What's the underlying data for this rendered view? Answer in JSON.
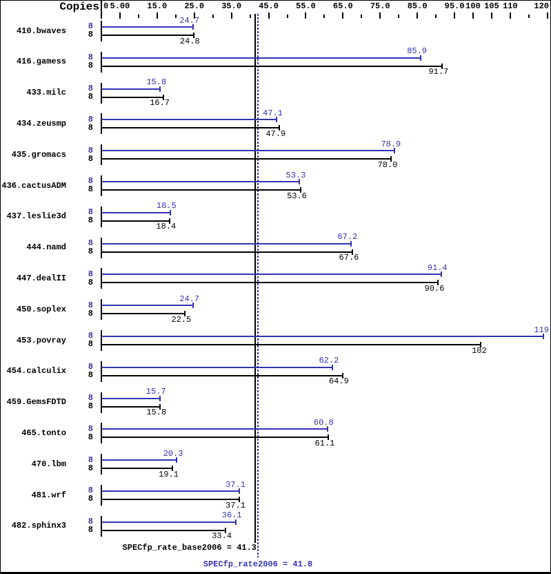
{
  "header": {
    "copies_label": "Copies"
  },
  "summary": {
    "base_text": "SPECfp_rate_base2006 = 41.3",
    "peak_text": "SPECfp_rate2006 = 41.8"
  },
  "colors": {
    "peak_blue": "#3333b3",
    "base_black": "#000000",
    "background": "#ffffff"
  },
  "chart_data": {
    "type": "bar",
    "orientation": "horizontal",
    "x_axis": {
      "min": 0,
      "max": 121.5,
      "origin_label": "0",
      "labeled_ticks": [
        {
          "value": 5,
          "label": "5.00"
        },
        {
          "value": 15,
          "label": "15.0"
        },
        {
          "value": 25,
          "label": "25.0"
        },
        {
          "value": 35,
          "label": "35.0"
        },
        {
          "value": 45,
          "label": "45.0"
        },
        {
          "value": 55,
          "label": "55.0"
        },
        {
          "value": 65,
          "label": "65.0"
        },
        {
          "value": 75,
          "label": "75.0"
        },
        {
          "value": 85,
          "label": "85.0"
        },
        {
          "value": 95,
          "label": "95.0"
        },
        {
          "value": 100,
          "label": "100"
        },
        {
          "value": 105,
          "label": "105"
        },
        {
          "value": 110,
          "label": "110"
        },
        {
          "value": 120,
          "label": "120"
        }
      ],
      "unlabeled_ticks": [
        10,
        20,
        30,
        40,
        50,
        60,
        70,
        80,
        90,
        115
      ]
    },
    "categories": [
      "410.bwaves",
      "416.gamess",
      "433.milc",
      "434.zeusmp",
      "435.gromacs",
      "436.cactusADM",
      "437.leslie3d",
      "444.namd",
      "447.dealII",
      "450.soplex",
      "453.povray",
      "454.calculix",
      "459.GemsFDTD",
      "465.tonto",
      "470.lbm",
      "481.wrf",
      "482.sphinx3"
    ],
    "series": [
      {
        "name": "peak",
        "color": "#3333b3",
        "copies": [
          8,
          8,
          8,
          8,
          8,
          8,
          8,
          8,
          8,
          8,
          8,
          8,
          8,
          8,
          8,
          8,
          8
        ],
        "values": [
          24.7,
          85.9,
          15.8,
          47.1,
          78.9,
          53.3,
          18.5,
          67.2,
          91.4,
          24.7,
          119,
          62.2,
          15.7,
          60.8,
          20.3,
          37.1,
          36.1
        ],
        "labels": [
          "24.7",
          "85.9",
          "15.8",
          "47.1",
          "78.9",
          "53.3",
          "18.5",
          "67.2",
          "91.4",
          "24.7",
          "119",
          "62.2",
          "15.7",
          "60.8",
          "20.3",
          "37.1",
          "36.1"
        ]
      },
      {
        "name": "base",
        "color": "#000000",
        "copies": [
          8,
          8,
          8,
          8,
          8,
          8,
          8,
          8,
          8,
          8,
          8,
          8,
          8,
          8,
          8,
          8,
          8
        ],
        "values": [
          24.8,
          91.7,
          16.7,
          47.9,
          78.0,
          53.6,
          18.4,
          67.6,
          90.6,
          22.5,
          102,
          64.9,
          15.8,
          61.1,
          19.1,
          37.1,
          33.4
        ],
        "labels": [
          "24.8",
          "91.7",
          "16.7",
          "47.9",
          "78.0",
          "53.6",
          "18.4",
          "67.6",
          "90.6",
          "22.5",
          "102",
          "64.9",
          "15.8",
          "61.1",
          "19.1",
          "37.1",
          "33.4"
        ]
      }
    ],
    "reference_lines": [
      {
        "series": "base",
        "value": 41.3,
        "style": "solid",
        "color": "#000000",
        "label": "SPECfp_rate_base2006 = 41.3"
      },
      {
        "series": "peak",
        "value": 41.8,
        "style": "dotted",
        "color": "#3333b3",
        "label": "SPECfp_rate2006 = 41.8"
      }
    ]
  }
}
